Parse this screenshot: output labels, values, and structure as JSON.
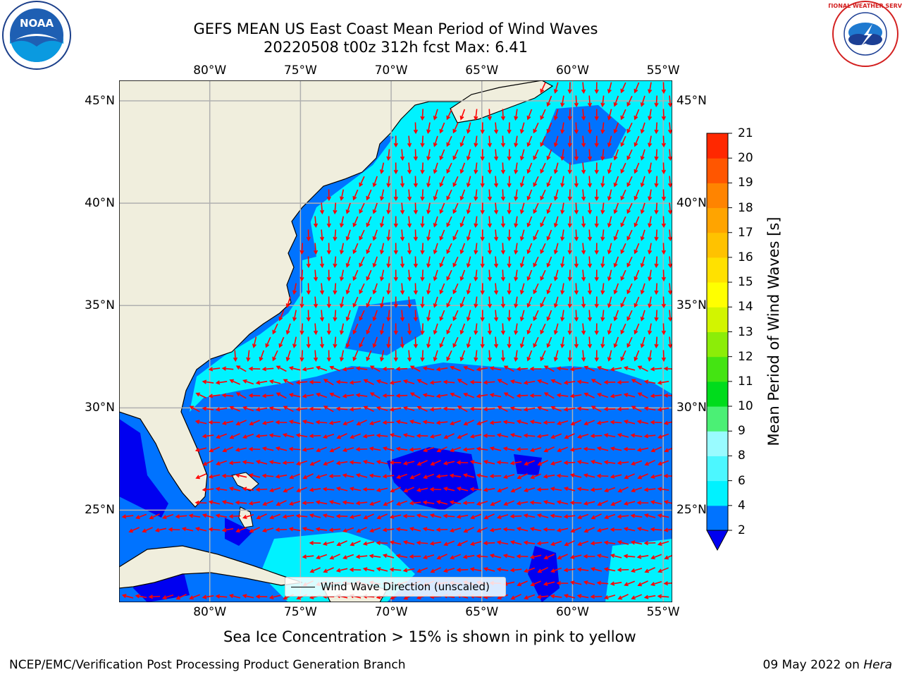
{
  "title": {
    "line1": "GEFS MEAN US East Coast Mean Period of Wind Waves",
    "line2": "20220508 t00z 312h fcst   Max: 6.41"
  },
  "map": {
    "lon_range": [
      -85,
      -54.5
    ],
    "lat_range": [
      20.5,
      46
    ],
    "lon_ticks": [
      {
        "value": -80,
        "label": "80°W"
      },
      {
        "value": -75,
        "label": "75°W"
      },
      {
        "value": -70,
        "label": "70°W"
      },
      {
        "value": -65,
        "label": "65°W"
      },
      {
        "value": -60,
        "label": "60°W"
      },
      {
        "value": -55,
        "label": "55°W"
      }
    ],
    "lat_ticks": [
      {
        "value": 45,
        "label": "45°N"
      },
      {
        "value": 40,
        "label": "40°N"
      },
      {
        "value": 35,
        "label": "35°N"
      },
      {
        "value": 30,
        "label": "30°N"
      },
      {
        "value": 25,
        "label": "25°N"
      }
    ],
    "gridlines": true,
    "land_color": "#f0eedd",
    "arrow_color": "#ff0000"
  },
  "colorbar": {
    "label": "Mean Period of Wind Waves [s]",
    "ticks": [
      "2",
      "4",
      "6",
      "8",
      "9",
      "10",
      "11",
      "12",
      "13",
      "14",
      "15",
      "16",
      "17",
      "18",
      "19",
      "20",
      "21"
    ],
    "colors": [
      "#0073ff",
      "#00f2ff",
      "#4cf7ff",
      "#99fbff",
      "#4bf075",
      "#00dc1c",
      "#44e412",
      "#8ced08",
      "#d2f500",
      "#ffff00",
      "#ffe100",
      "#ffc200",
      "#ffa400",
      "#ff8400",
      "#ff5600",
      "#ff2800"
    ],
    "under_color": "#0000f0"
  },
  "legend": {
    "label": "Wind Wave Direction (unscaled)"
  },
  "caption": "Sea Ice Concentration > 15% is shown in pink to yellow",
  "footer": {
    "left": "NCEP/EMC/Verification Post Processing Product Generation Branch",
    "right_date": "09 May 2022 on ",
    "right_host": "Hera"
  },
  "logos": {
    "left": "NOAA",
    "right": "NATIONAL WEATHER SERVICE"
  }
}
